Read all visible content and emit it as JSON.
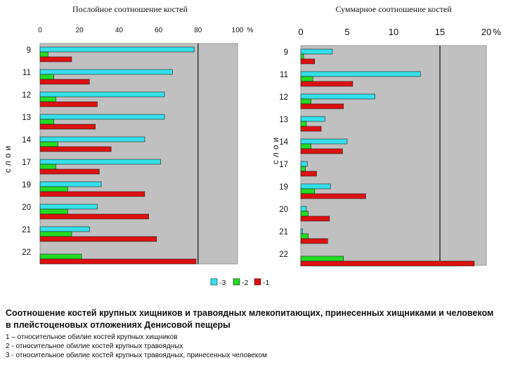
{
  "chart_data": [
    {
      "type": "bar",
      "orientation": "horizontal",
      "title": "Послойное соотношение костей",
      "ylabel": "слои",
      "xlabel": "",
      "unit_label": "%",
      "xlim": [
        0,
        100
      ],
      "xticks": [
        "0",
        "20",
        "40",
        "60",
        "80",
        "100"
      ],
      "categories": [
        "9",
        "11",
        "12",
        "13",
        "14",
        "17",
        "19",
        "20",
        "21",
        "22"
      ],
      "series": [
        {
          "name": "-3",
          "color": "#33e0ea",
          "values": [
            78,
            67,
            63,
            63,
            53,
            61,
            31,
            29,
            25,
            0
          ]
        },
        {
          "name": "-2",
          "color": "#22dd22",
          "values": [
            4,
            7,
            8,
            7,
            9,
            8,
            14,
            14,
            16,
            21
          ]
        },
        {
          "name": "-1",
          "color": "#dd1111",
          "values": [
            16,
            25,
            29,
            28,
            36,
            30,
            53,
            55,
            59,
            79
          ]
        }
      ],
      "reference_line": 80,
      "grid": false
    },
    {
      "type": "bar",
      "orientation": "horizontal",
      "title": "Суммарное соотношение костей",
      "ylabel": "слои",
      "xlabel": "",
      "unit_label": "%",
      "xlim": [
        0,
        20
      ],
      "xticks": [
        "0",
        "5",
        "10",
        "15",
        "20"
      ],
      "categories": [
        "9",
        "11",
        "12",
        "13",
        "14",
        "17",
        "19",
        "20",
        "21",
        "22"
      ],
      "series": [
        {
          "name": "-3",
          "color": "#33e0ea",
          "values": [
            3.4,
            12.9,
            8.0,
            2.6,
            5.0,
            0.7,
            3.2,
            0.6,
            0.2,
            0
          ]
        },
        {
          "name": "-2",
          "color": "#22dd22",
          "values": [
            0.3,
            1.3,
            1.1,
            0.6,
            1.1,
            0.5,
            1.5,
            0.8,
            0.8,
            4.6
          ]
        },
        {
          "name": "-1",
          "color": "#dd1111",
          "values": [
            1.5,
            5.6,
            4.6,
            2.2,
            4.5,
            1.7,
            7.0,
            3.1,
            2.9,
            18.7
          ]
        }
      ],
      "reference_line": 15,
      "grid": false
    }
  ],
  "legend": [
    {
      "label": "-3",
      "color": "#33e0ea"
    },
    {
      "label": "-2",
      "color": "#22dd22"
    },
    {
      "label": "-1",
      "color": "#dd1111"
    }
  ],
  "caption": {
    "title": "Соотношение костей крупных хищников и травоядных млекопитающих, принесенных хищниками и человеком в плейстоценовых отложениях Денисовой пещеры",
    "notes": [
      "1 – относительное обилие костей крупных хищников",
      "2 - относительное обилие костей крупных травоядных",
      "3 - относительное обилие костей крупных травоядных, принесенных человеком"
    ]
  }
}
